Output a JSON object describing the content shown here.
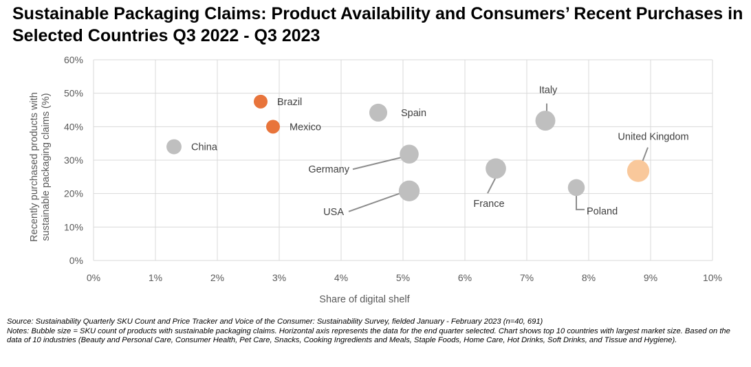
{
  "title": "Sustainable Packaging Claims: Product Availability and Consumers’ Recent Purchases in Selected Countries Q3 2022 - Q3 2023",
  "source_note": "Source: Sustainability Quarterly SKU Count and Price Tracker and Voice of the Consumer: Sustainability Survey, fielded January - February 2023 (n=40, 691)",
  "notes_text": "Notes: Bubble size = SKU count of products with sustainable packaging claims. Horizontal axis represents the data for the end quarter selected. Chart shows top 10 countries with largest market size. Based on the data of 10 industries (Beauty and Personal Care, Consumer Health, Pet Care, Snacks, Cooking Ingredients and Meals, Staple Foods, Home Care, Hot Drinks, Soft Drinks, and Tissue and Hygiene).",
  "chart_data": {
    "type": "scatter",
    "subtype": "bubble",
    "xlabel": "Share of digital shelf",
    "ylabel_lines": [
      "Recently purchased products with",
      "sustainable packaging claims (%)"
    ],
    "xlim": [
      0,
      10
    ],
    "ylim": [
      0,
      60
    ],
    "x_ticks": [
      0,
      1,
      2,
      3,
      4,
      5,
      6,
      7,
      8,
      9,
      10
    ],
    "x_tick_labels": [
      "0%",
      "1%",
      "2%",
      "3%",
      "4%",
      "5%",
      "6%",
      "7%",
      "8%",
      "9%",
      "10%"
    ],
    "y_ticks": [
      0,
      10,
      20,
      30,
      40,
      50,
      60
    ],
    "y_tick_labels": [
      "0%",
      "10%",
      "20%",
      "30%",
      "40%",
      "50%",
      "60%"
    ],
    "grid": true,
    "points": [
      {
        "label": "China",
        "x": 1.3,
        "y": 34.0,
        "size": 1.2,
        "color": "#bfbfbf",
        "label_pos": "right"
      },
      {
        "label": "Brazil",
        "x": 2.7,
        "y": 47.5,
        "size": 1.0,
        "color": "#e8743b",
        "label_pos": "right"
      },
      {
        "label": "Mexico",
        "x": 2.9,
        "y": 40.0,
        "size": 1.0,
        "color": "#e8743b",
        "label_pos": "right"
      },
      {
        "label": "Spain",
        "x": 4.6,
        "y": 44.2,
        "size": 1.7,
        "color": "#bfbfbf",
        "label_pos": "right"
      },
      {
        "label": "Germany",
        "x": 5.1,
        "y": 31.8,
        "size": 1.9,
        "color": "#bfbfbf",
        "label_pos": "leader"
      },
      {
        "label": "USA",
        "x": 5.1,
        "y": 20.8,
        "size": 2.3,
        "color": "#bfbfbf",
        "label_pos": "leader"
      },
      {
        "label": "France",
        "x": 6.5,
        "y": 27.5,
        "size": 2.2,
        "color": "#bfbfbf",
        "label_pos": "leader"
      },
      {
        "label": "Italy",
        "x": 7.3,
        "y": 41.8,
        "size": 2.1,
        "color": "#bfbfbf",
        "label_pos": "leader"
      },
      {
        "label": "Poland",
        "x": 7.8,
        "y": 21.8,
        "size": 1.5,
        "color": "#bfbfbf",
        "label_pos": "leader"
      },
      {
        "label": "United Kingdom",
        "x": 8.8,
        "y": 26.8,
        "size": 2.6,
        "color": "#f9c89b",
        "label_pos": "leader"
      }
    ]
  },
  "colors": {
    "highlight": "#e8743b",
    "uk": "#f9c89b",
    "default": "#bfbfbf",
    "grid": "#d9d9d9",
    "axis_text": "#595959",
    "leader": "#8c8c8c"
  }
}
